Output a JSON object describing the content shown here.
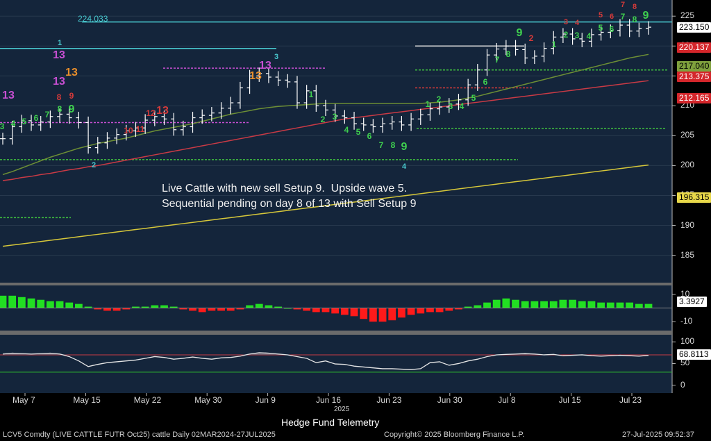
{
  "annotation": {
    "line1": "Live Cattle with new sell Setup 9.  Upside wave 5.",
    "line2": "Sequential pending on day 8 of 13 with Sell Setup 9"
  },
  "top_level_label": "224.033",
  "price_tags": [
    {
      "value": "223.150",
      "bg": "#ffffff",
      "fg": "#000000"
    },
    {
      "value": "220.137",
      "bg": "#d4262b",
      "fg": "#ffffff"
    },
    {
      "value": "217.040",
      "bg": "#7fa03d",
      "fg": "#000000"
    },
    {
      "value": "213.375",
      "bg": "#d4262b",
      "fg": "#ffffff"
    },
    {
      "value": "212.165",
      "bg": "#d4262b",
      "fg": "#ffffff"
    },
    {
      "value": "196.315",
      "bg": "#e8d84a",
      "fg": "#000000"
    }
  ],
  "momentum_tag": {
    "value": "3.3927",
    "bg": "#ffffff",
    "fg": "#000000"
  },
  "osc_tag": {
    "value": "68.8113",
    "bg": "#ffffff",
    "fg": "#000000"
  },
  "footer": {
    "left": "LCV5 Comdty (LIVE CATTLE FUTR  Oct25) cattle  Daily 02MAR2024-27JUL2025",
    "center": "Copyright© 2025 Bloomberg Finance L.P.",
    "right": "27-Jul-2025 09:52:37",
    "title": "Hedge Fund Telemetry",
    "year": "2025"
  },
  "chart_data": [
    {
      "type": "line",
      "panel": "price",
      "ylim": [
        181,
        227
      ],
      "yticks": [
        185,
        190,
        195,
        200,
        205,
        210,
        215,
        220,
        225
      ],
      "x_ticks": [
        "May 7",
        "May 15",
        "May 22",
        "May 30",
        "Jun 9",
        "Jun 16",
        "Jun 23",
        "Jun 30",
        "Jul 8",
        "Jul 15",
        "Jul 23"
      ],
      "price_close": [
        204.5,
        206.5,
        207.5,
        206.8,
        207.3,
        208.2,
        208.6,
        208.0,
        207.2,
        203.0,
        203.8,
        204.6,
        205.2,
        205.8,
        206.3,
        207.6,
        208.2,
        207.8,
        206.0,
        206.5,
        208.0,
        208.4,
        208.8,
        209.6,
        210.5,
        213.0,
        215.0,
        215.4,
        214.8,
        214.3,
        214.0,
        210.5,
        212.5,
        210.0,
        209.3,
        208.3,
        208.0,
        207.0,
        206.8,
        206.5,
        207.0,
        207.3,
        206.8,
        207.8,
        208.5,
        209.5,
        209.8,
        210.3,
        211.0,
        213.5,
        216.0,
        218.5,
        219.5,
        220.0,
        219.4,
        218.0,
        218.3,
        219.6,
        221.5,
        222.0,
        221.2,
        220.8,
        221.9,
        222.3,
        222.6,
        223.5,
        222.5,
        222.9,
        223.15
      ],
      "ma_green": [
        198.5,
        199.0,
        199.6,
        200.2,
        200.8,
        201.4,
        201.9,
        202.4,
        202.9,
        203.3,
        203.7,
        204.0,
        204.3,
        204.6,
        205.0,
        205.4,
        205.8,
        206.1,
        206.4,
        206.7,
        207.0,
        207.4,
        207.8,
        208.2,
        208.6,
        208.9,
        209.2,
        209.5,
        209.7,
        209.9,
        210.0,
        210.1,
        210.2,
        210.3,
        210.4,
        210.4,
        210.4,
        210.4,
        210.4,
        210.4,
        210.4,
        210.4,
        210.4,
        210.4,
        210.4,
        210.5,
        210.6,
        210.8,
        211.0,
        211.3,
        211.6,
        212.0,
        212.4,
        212.8,
        213.2,
        213.6,
        214.0,
        214.4,
        214.8,
        215.2,
        215.6,
        216.0,
        216.4,
        216.8,
        217.2,
        217.6,
        218.0,
        218.3,
        218.6
      ],
      "ma_red": [
        197.5,
        197.7,
        198.0,
        198.2,
        198.5,
        198.7,
        199.0,
        199.3,
        199.5,
        199.8,
        200.0,
        200.3,
        200.6,
        200.9,
        201.2,
        201.5,
        201.8,
        202.1,
        202.4,
        202.7,
        203.0,
        203.3,
        203.6,
        203.9,
        204.2,
        204.5,
        204.8,
        205.1,
        205.4,
        205.7,
        206.0,
        206.3,
        206.6,
        206.9,
        207.2,
        207.5,
        207.8,
        208.0,
        208.2,
        208.4,
        208.6,
        208.8,
        209.0,
        209.2,
        209.4,
        209.6,
        209.8,
        210.0,
        210.2,
        210.4,
        210.6,
        210.8,
        211.0,
        211.2,
        211.4,
        211.6,
        211.8,
        212.0,
        212.2,
        212.4,
        212.6,
        212.8,
        213.0,
        213.2,
        213.4,
        213.6,
        213.8,
        214.0,
        214.2
      ],
      "ma_yellow": [
        186.5,
        186.7,
        186.9,
        187.1,
        187.3,
        187.5,
        187.7,
        187.9,
        188.1,
        188.3,
        188.5,
        188.7,
        188.9,
        189.1,
        189.3,
        189.5,
        189.7,
        189.9,
        190.1,
        190.3,
        190.5,
        190.7,
        190.9,
        191.1,
        191.3,
        191.5,
        191.7,
        191.9,
        192.1,
        192.3,
        192.5,
        192.7,
        192.9,
        193.1,
        193.3,
        193.5,
        193.7,
        193.9,
        194.1,
        194.3,
        194.5,
        194.7,
        194.9,
        195.1,
        195.3,
        195.5,
        195.7,
        195.9,
        196.1,
        196.3,
        196.5,
        196.7,
        196.9,
        197.1,
        197.3,
        197.5,
        197.7,
        197.9,
        198.1,
        198.3,
        198.5,
        198.7,
        198.9,
        199.1,
        199.3,
        199.5,
        199.7,
        199.9,
        200.1
      ]
    },
    {
      "type": "bar",
      "panel": "momentum",
      "yticks": [
        10,
        -10
      ],
      "ylim": [
        -15,
        15
      ],
      "values": [
        9,
        9,
        8,
        7,
        6,
        5,
        5,
        4,
        3,
        1,
        -1,
        -2,
        -2,
        -1,
        1,
        1,
        2,
        2,
        1,
        -1,
        -2,
        -3,
        -2,
        -2,
        -2,
        -1,
        2,
        3,
        2,
        1,
        0,
        -1,
        -2,
        -3,
        -3,
        -4,
        -5,
        -6,
        -8,
        -10,
        -10,
        -9,
        -7,
        -5,
        -4,
        -3,
        -3,
        -2,
        -1,
        1,
        2,
        4,
        6,
        7,
        6,
        5,
        5,
        5,
        5,
        6,
        6,
        5,
        5,
        4,
        4,
        4,
        4,
        3,
        3
      ],
      "last_value": 3.3927
    },
    {
      "type": "line",
      "panel": "oscillator",
      "yticks": [
        100,
        50,
        0
      ],
      "ylim": [
        -15,
        110
      ],
      "ref_lines": [
        70,
        30
      ],
      "values": [
        72,
        74,
        73,
        72,
        73,
        74,
        72,
        66,
        56,
        43,
        48,
        52,
        54,
        56,
        58,
        62,
        66,
        64,
        60,
        62,
        65,
        62,
        60,
        63,
        64,
        67,
        72,
        75,
        74,
        72,
        70,
        66,
        62,
        52,
        56,
        49,
        48,
        44,
        42,
        40,
        38,
        38,
        37,
        36,
        38,
        52,
        54,
        46,
        50,
        56,
        60,
        66,
        70,
        71,
        72,
        73,
        72,
        70,
        71,
        68,
        69,
        70,
        68,
        67,
        68,
        69,
        68,
        67,
        68.8
      ]
    }
  ]
}
